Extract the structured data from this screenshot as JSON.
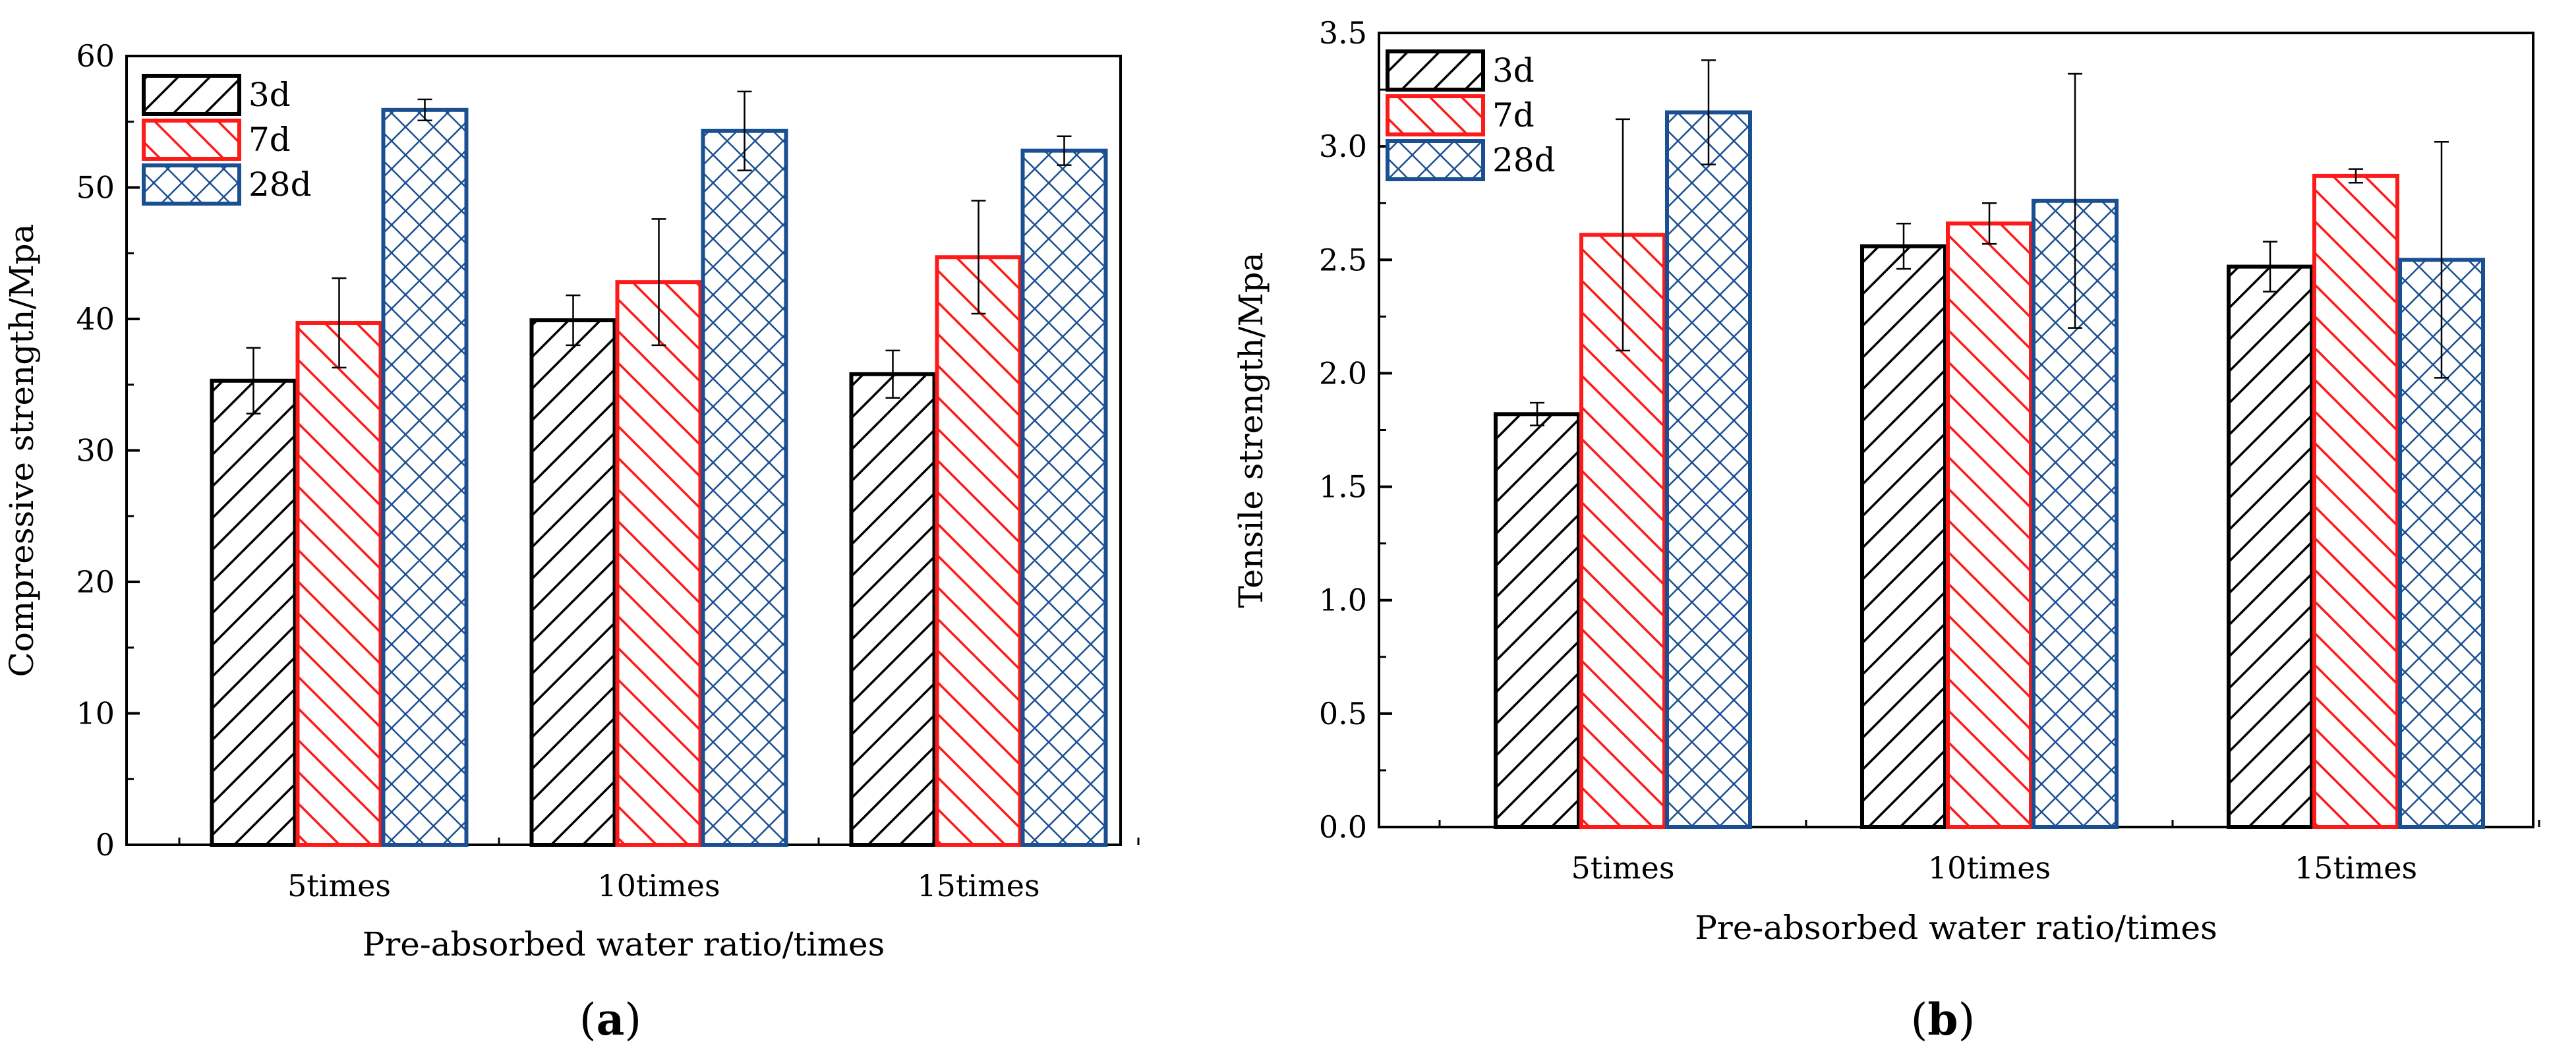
{
  "figure": {
    "panel_a_label": "a",
    "panel_b_label": "b"
  },
  "styles": {
    "colors": {
      "3d": "#000000",
      "7d": "#ff1a1a",
      "28d": "#1a4f91"
    },
    "patterns": {
      "3d": "hatch-right",
      "7d": "hatch-left",
      "28d": "crosshatch"
    }
  },
  "chart_data": [
    {
      "type": "bar",
      "panel": "a",
      "title": "",
      "xlabel": "Pre-absorbed water ratio/times",
      "ylabel": "Compressive strength/Mpa",
      "categories": [
        "5times",
        "10times",
        "15times"
      ],
      "ylim": [
        0,
        60
      ],
      "yticks": [
        0,
        10,
        20,
        30,
        40,
        50,
        60
      ],
      "ytick_labels": [
        "0",
        "10",
        "20",
        "30",
        "40",
        "50",
        "60"
      ],
      "legend_position": "top-left",
      "series": [
        {
          "name": "3d",
          "values": [
            35.3,
            39.9,
            35.8
          ],
          "errors": [
            2.5,
            1.9,
            1.8
          ]
        },
        {
          "name": "7d",
          "values": [
            39.7,
            42.8,
            44.7
          ],
          "errors": [
            3.4,
            4.8,
            4.3
          ]
        },
        {
          "name": "28d",
          "values": [
            55.9,
            54.3,
            52.8
          ],
          "errors": [
            0.8,
            3.0,
            1.1
          ]
        }
      ]
    },
    {
      "type": "bar",
      "panel": "b",
      "title": "",
      "xlabel": "Pre-absorbed water ratio/times",
      "ylabel": "Tensile strength/Mpa",
      "categories": [
        "5times",
        "10times",
        "15times"
      ],
      "ylim": [
        0,
        3.5
      ],
      "yticks": [
        0,
        0.5,
        1.0,
        1.5,
        2.0,
        2.5,
        3.0,
        3.5
      ],
      "ytick_labels": [
        "0.0",
        "0.5",
        "1.0",
        "1.5",
        "2.0",
        "2.5",
        "3.0",
        "3.5"
      ],
      "legend_position": "top-left",
      "series": [
        {
          "name": "3d",
          "values": [
            1.82,
            2.56,
            2.47
          ],
          "errors": [
            0.05,
            0.1,
            0.11
          ]
        },
        {
          "name": "7d",
          "values": [
            2.61,
            2.66,
            2.87
          ],
          "errors": [
            0.51,
            0.09,
            0.03
          ]
        },
        {
          "name": "28d",
          "values": [
            3.15,
            2.76,
            2.5
          ],
          "errors": [
            0.23,
            0.56,
            0.52
          ]
        }
      ]
    }
  ]
}
